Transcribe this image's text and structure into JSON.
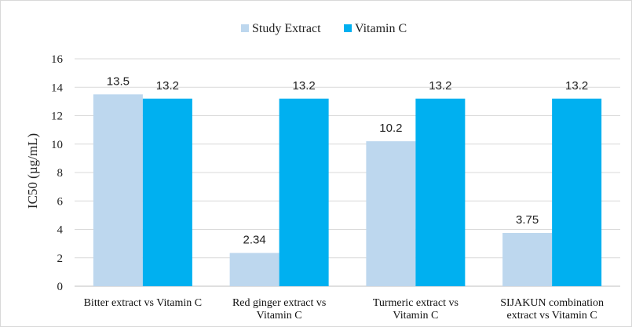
{
  "chart_data": {
    "type": "bar",
    "title": "",
    "xlabel": "",
    "ylabel": "IC50 (µg/mL)",
    "ylim": [
      0,
      16
    ],
    "yticks": [
      0,
      2,
      4,
      6,
      8,
      10,
      12,
      14,
      16
    ],
    "grid": true,
    "legend_position": "top-center",
    "categories": [
      [
        "Bitter extract vs Vitamin C"
      ],
      [
        "Red ginger extract vs",
        "Vitamin C"
      ],
      [
        "Turmeric extract vs",
        "Vitamin C"
      ],
      [
        "SIJAKUN combination",
        "extract vs Vitamin C"
      ]
    ],
    "series": [
      {
        "name": "Study Extract",
        "color": "#BDD7EE",
        "values": [
          13.5,
          2.34,
          10.2,
          3.75
        ],
        "labels": [
          "13.5",
          "2.34",
          "10.2",
          "3.75"
        ]
      },
      {
        "name": "Vitamin C",
        "color": "#00B0F0",
        "values": [
          13.2,
          13.2,
          13.2,
          13.2
        ],
        "labels": [
          "13.2",
          "13.2",
          "13.2",
          "13.2"
        ]
      }
    ]
  }
}
